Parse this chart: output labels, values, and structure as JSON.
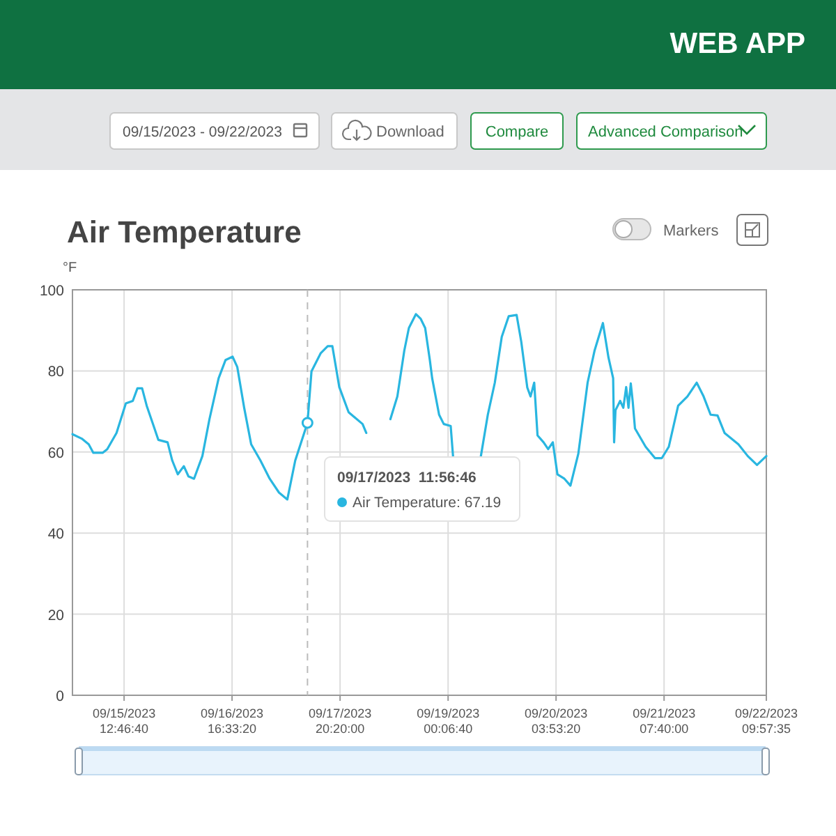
{
  "chart_data": {
    "type": "line",
    "title": "Air Temperature",
    "ylabel": "°F",
    "xlim": [
      "2023-09-14T23:30",
      "2023-09-22T09:58"
    ],
    "xticks": [
      {
        "value": "2023-09-15T12:47",
        "label": "09/15/2023 12:46:40"
      },
      {
        "value": "2023-09-16T16:33",
        "label": "09/16/2023 16:33:20"
      },
      {
        "value": "2023-09-17T20:20",
        "label": "09/17/2023 20:20:00"
      },
      {
        "value": "2023-09-19T00:07",
        "label": "09/19/2023 00:06:40"
      },
      {
        "value": "2023-09-20T03:53",
        "label": "09/20/2023 03:53:20"
      },
      {
        "value": "2023-09-21T07:40",
        "label": "09/21/2023 07:40:00"
      },
      {
        "value": "2023-09-22T09:58",
        "label": "09/22/2023 09:57:35"
      }
    ],
    "ylim": [
      0,
      100
    ],
    "yticks": [
      0,
      20,
      40,
      60,
      80,
      100
    ],
    "grid": true,
    "marker": "none",
    "line_style": "solid",
    "x": [
      "2023-09-14T23:30",
      "2023-09-15T01:53",
      "2023-09-15T03:41",
      "2023-09-15T04:52",
      "2023-09-15T07:16",
      "2023-09-15T08:27",
      "2023-09-15T10:50",
      "2023-09-15T13:14",
      "2023-09-15T15:01",
      "2023-09-15T16:13",
      "2023-09-15T17:25",
      "2023-09-15T18:36",
      "2023-09-15T20:23",
      "2023-09-15T21:35",
      "2023-09-15T23:58",
      "2023-09-16T01:10",
      "2023-09-16T02:36",
      "2023-09-16T04:09",
      "2023-09-16T05:20",
      "2023-09-16T06:46",
      "2023-09-16T08:55",
      "2023-09-16T10:43",
      "2023-09-16T13:06",
      "2023-09-16T14:53",
      "2023-09-16T16:41",
      "2023-09-16T17:53",
      "2023-09-16T19:40",
      "2023-09-16T21:28",
      "2023-09-16T23:51",
      "2023-09-17T02:14",
      "2023-09-17T04:37",
      "2023-09-17T06:46",
      "2023-09-17T08:48",
      "2023-09-17T11:57",
      "2023-09-17T12:59",
      "2023-09-17T15:22",
      "2023-09-17T17:09",
      "2023-09-17T18:21",
      "2023-09-17T20:08",
      "2023-09-17T22:32",
      "2023-09-18T02:07",
      "2023-09-18T03:04",
      "2023-09-18T03:54",
      "2023-09-18T06:00",
      "2023-09-18T08:19",
      "2023-09-18T09:16",
      "2023-09-18T11:04",
      "2023-09-18T12:51",
      "2023-09-18T14:02",
      "2023-09-18T15:50",
      "2023-09-18T17:02",
      "2023-09-18T18:13",
      "2023-09-18T19:25",
      "2023-09-18T20:01",
      "2023-09-18T21:48",
      "2023-09-18T23:00",
      "2023-09-19T00:47",
      "2023-09-19T01:23",
      "2023-09-19T04:00",
      "2023-09-19T08:33",
      "2023-09-19T10:20",
      "2023-09-19T12:08",
      "2023-09-19T13:55",
      "2023-09-19T15:43",
      "2023-09-19T17:44",
      "2023-09-19T18:56",
      "2023-09-19T20:29",
      "2023-09-19T21:19",
      "2023-09-19T22:16",
      "2023-09-19T23:07",
      "2023-09-20T00:40",
      "2023-09-20T01:51",
      "2023-09-20T03:03",
      "2023-09-20T04:14",
      "2023-09-20T06:02",
      "2023-09-20T07:35",
      "2023-09-20T09:37",
      "2023-09-20T12:00",
      "2023-09-20T13:47",
      "2023-09-20T15:56",
      "2023-09-20T17:22",
      "2023-09-20T18:34",
      "2023-09-20T18:49",
      "2023-09-20T19:10",
      "2023-09-20T20:22",
      "2023-09-20T21:11",
      "2023-09-20T21:55",
      "2023-09-20T22:31",
      "2023-09-20T23:06",
      "2023-09-20T23:35",
      "2023-09-21T00:11",
      "2023-09-21T02:55",
      "2023-09-21T05:19",
      "2023-09-21T07:06",
      "2023-09-21T08:53",
      "2023-09-21T11:17",
      "2023-09-21T13:40",
      "2023-09-21T16:03",
      "2023-09-21T17:50",
      "2023-09-21T19:38",
      "2023-09-21T21:25",
      "2023-09-21T23:13",
      "2023-09-22T02:47",
      "2023-09-22T05:11",
      "2023-09-22T07:34",
      "2023-09-22T09:58"
    ],
    "series": [
      {
        "color": "#29b6e0",
        "values": [
          64.4,
          63.3,
          61.9,
          59.8,
          59.8,
          60.7,
          64.7,
          72,
          72.6,
          75.7,
          75.7,
          71.4,
          66.4,
          63,
          62.4,
          57.9,
          54.5,
          56.5,
          54,
          53.4,
          59,
          68,
          78.2,
          82.7,
          83.5,
          81,
          70.9,
          61.9,
          57.9,
          53.4,
          50,
          48.3,
          57.9,
          67.19,
          79.9,
          84.4,
          86.1,
          86.1,
          76,
          69.8,
          66.9,
          64.7,
          null,
          null,
          null,
          68.1,
          73.7,
          85,
          90.6,
          94,
          92.9,
          90.6,
          82.7,
          78.2,
          69.2,
          66.9,
          66.4,
          59,
          null,
          59,
          69.2,
          77.1,
          88.4,
          93.5,
          93.8,
          87.2,
          75.9,
          73.7,
          77.1,
          64.1,
          62.4,
          60.7,
          62.4,
          54.5,
          53.4,
          51.7,
          59.6,
          77.1,
          85,
          91.8,
          83.3,
          78.2,
          62.4,
          70.3,
          72.6,
          70.9,
          76,
          70.9,
          76.9,
          72.6,
          65.8,
          61.3,
          58.5,
          58.5,
          61.3,
          71.4,
          73.7,
          77.1,
          73.7,
          69.2,
          69,
          64.7,
          61.9,
          59,
          56.8,
          59
        ]
      }
    ],
    "ref_lines": [
      {
        "axis": "x",
        "value": "2023-09-17T11:57",
        "color": "#bbbbbb",
        "line_style": "dashed"
      }
    ],
    "annotations": [
      "09/17/2023  11:56:46\nAir Temperature: 67.19",
      "WEB APP",
      "09/15/2023 - 09/22/2023",
      "Download",
      "Compare",
      "Advanced Comparison",
      "Markers"
    ]
  }
}
